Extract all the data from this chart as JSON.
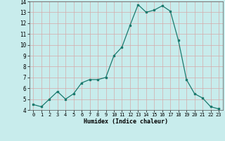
{
  "x": [
    0,
    1,
    2,
    3,
    4,
    5,
    6,
    7,
    8,
    9,
    10,
    11,
    12,
    13,
    14,
    15,
    16,
    17,
    18,
    19,
    20,
    21,
    22,
    23
  ],
  "y": [
    4.5,
    4.3,
    5.0,
    5.7,
    5.0,
    5.5,
    6.5,
    6.8,
    6.8,
    7.0,
    9.0,
    9.8,
    11.8,
    13.7,
    13.0,
    13.2,
    13.6,
    13.1,
    10.4,
    6.8,
    5.5,
    5.1,
    4.3,
    4.1
  ],
  "xlim": [
    -0.5,
    23.5
  ],
  "ylim": [
    4,
    14
  ],
  "yticks": [
    4,
    5,
    6,
    7,
    8,
    9,
    10,
    11,
    12,
    13,
    14
  ],
  "xticks": [
    0,
    1,
    2,
    3,
    4,
    5,
    6,
    7,
    8,
    9,
    10,
    11,
    12,
    13,
    14,
    15,
    16,
    17,
    18,
    19,
    20,
    21,
    22,
    23
  ],
  "xlabel": "Humidex (Indice chaleur)",
  "line_color": "#1a7a6e",
  "bg_color": "#c8ecec",
  "grid_color": "#d4aaaa",
  "title": ""
}
